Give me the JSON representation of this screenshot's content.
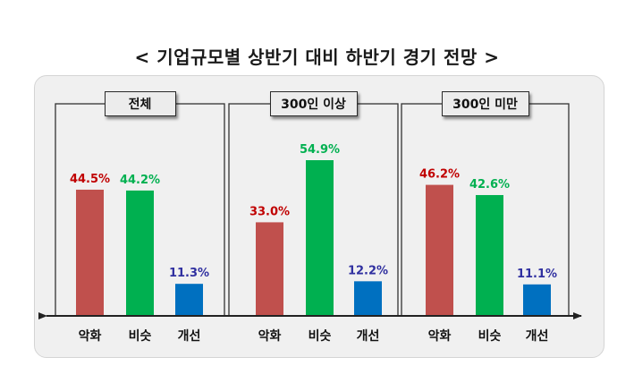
{
  "chart_data": {
    "type": "bar",
    "title": "< 기업규모별 상반기 대비 하반기 경기 전망 >",
    "xlabel": "",
    "ylabel": "",
    "ylim": [
      0,
      60
    ],
    "categories": [
      "악화",
      "비슷",
      "개선"
    ],
    "value_suffix": "%",
    "colors": [
      "#c0504d",
      "#00b050",
      "#0070c0"
    ],
    "label_colors": [
      "#c00000",
      "#00b050",
      "#3030a0"
    ],
    "groups": [
      {
        "name": "전체",
        "values": [
          44.5,
          44.2,
          11.3
        ]
      },
      {
        "name": "300인 이상",
        "values": [
          33.0,
          54.9,
          12.2
        ]
      },
      {
        "name": "300인 미만",
        "values": [
          46.2,
          42.6,
          11.1
        ]
      }
    ]
  }
}
